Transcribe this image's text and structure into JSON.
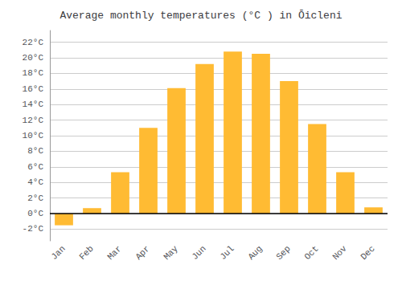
{
  "chart_data": {
    "type": "bar",
    "title": "Average monthly temperatures (°C ) in Ōicleni",
    "categories": [
      "Jan",
      "Feb",
      "Mar",
      "Apr",
      "May",
      "Jun",
      "Jul",
      "Aug",
      "Sep",
      "Oct",
      "Nov",
      "Dec"
    ],
    "values": [
      -1.5,
      0.7,
      5.3,
      11.0,
      16.1,
      19.2,
      20.8,
      20.5,
      17.0,
      11.5,
      5.3,
      0.8
    ],
    "color": "#FFBB33",
    "ylim": [
      -3.5,
      23.5
    ],
    "yticks": [
      {
        "value": -2,
        "label": "-2°C"
      },
      {
        "value": 0,
        "label": "0°C"
      },
      {
        "value": 2,
        "label": "2°C"
      },
      {
        "value": 4,
        "label": "4°C"
      },
      {
        "value": 6,
        "label": "6°C"
      },
      {
        "value": 8,
        "label": "8°C"
      },
      {
        "value": 10,
        "label": "10°C"
      },
      {
        "value": 12,
        "label": "12°C"
      },
      {
        "value": 14,
        "label": "14°C"
      },
      {
        "value": 16,
        "label": "16°C"
      },
      {
        "value": 18,
        "label": "18°C"
      },
      {
        "value": 20,
        "label": "20°C"
      },
      {
        "value": 22,
        "label": "22°C"
      }
    ],
    "grid": true
  }
}
